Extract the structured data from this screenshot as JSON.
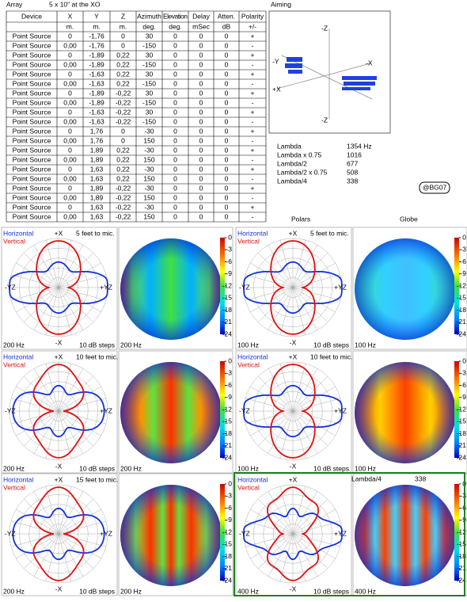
{
  "array_label": "Array",
  "array_title": "5 x 10\" at the XO",
  "table": {
    "headers": [
      "Device",
      "X",
      "Y",
      "Z",
      "Azimuth",
      "Elevation",
      "Delay",
      "Atten.",
      "Polarity"
    ],
    "units": [
      "m.",
      "m.",
      "m.",
      "deg.",
      "deg.",
      "mSec",
      "dB",
      "+/-"
    ],
    "rows": [
      [
        "Point Source",
        "0",
        "-1,76",
        "0",
        "30",
        "0",
        "0",
        "0",
        "+"
      ],
      [
        "Point Source",
        "0,00",
        "-1,76",
        "0",
        "-150",
        "0",
        "0",
        "0",
        "-"
      ],
      [
        "Point Source",
        "0",
        "-1,89",
        "0,22",
        "30",
        "0",
        "0",
        "0",
        "+"
      ],
      [
        "Point Source",
        "0,00",
        "-1,89",
        "0,22",
        "-150",
        "0",
        "0",
        "0",
        "-"
      ],
      [
        "Point Source",
        "0",
        "-1,63",
        "0,22",
        "30",
        "0",
        "0",
        "0",
        "+"
      ],
      [
        "Point Source",
        "0,00",
        "-1,63",
        "0,22",
        "-150",
        "0",
        "0",
        "0",
        "-"
      ],
      [
        "Point Source",
        "0",
        "-1,89",
        "-0,22",
        "30",
        "0",
        "0",
        "0",
        "+"
      ],
      [
        "Point Source",
        "0,00",
        "-1,89",
        "-0,22",
        "-150",
        "0",
        "0",
        "0",
        "-"
      ],
      [
        "Point Source",
        "0",
        "-1,63",
        "-0,22",
        "30",
        "0",
        "0",
        "0",
        "+"
      ],
      [
        "Point Source",
        "0,00",
        "-1,63",
        "-0,22",
        "-150",
        "0",
        "0",
        "0",
        "-"
      ],
      [
        "Point Source",
        "0",
        "1,76",
        "0",
        "-30",
        "0",
        "0",
        "0",
        "+"
      ],
      [
        "Point Source",
        "0,00",
        "1,76",
        "0",
        "150",
        "0",
        "0",
        "0",
        "-"
      ],
      [
        "Point Source",
        "0",
        "1,89",
        "0,22",
        "-30",
        "0",
        "0",
        "0",
        "+"
      ],
      [
        "Point Source",
        "0,00",
        "1,89",
        "0,22",
        "150",
        "0",
        "0",
        "0",
        "-"
      ],
      [
        "Point Source",
        "0",
        "1,63",
        "0,22",
        "-30",
        "0",
        "0",
        "0",
        "+"
      ],
      [
        "Point Source",
        "0,00",
        "1,63",
        "0,22",
        "150",
        "0",
        "0",
        "0",
        "-"
      ],
      [
        "Point Source",
        "0",
        "1,89",
        "-0,22",
        "-30",
        "0",
        "0",
        "0",
        "+"
      ],
      [
        "Point Source",
        "0,00",
        "1,89",
        "-0,22",
        "150",
        "0",
        "0",
        "0",
        "-"
      ],
      [
        "Point Source",
        "0",
        "1,63",
        "-0,22",
        "-30",
        "0",
        "0",
        "0",
        "+"
      ],
      [
        "Point Source",
        "0,00",
        "1,63",
        "-0,22",
        "150",
        "0",
        "0",
        "0",
        "-"
      ]
    ]
  },
  "aiming": {
    "title": "Aiming",
    "top": "-Z",
    "bottom": "-Z",
    "left_upper": "-Y",
    "left_lower": "+X",
    "right": "-X"
  },
  "lambda": [
    {
      "label": "Lambda",
      "value": "1354 Hz"
    },
    {
      "label": "Lambda x 0.75",
      "value": "1016"
    },
    {
      "label": "Lambda/2",
      "value": "677"
    },
    {
      "label": "Lambda/2 x 0.75",
      "value": "508"
    },
    {
      "label": "Lambda/4",
      "value": "338"
    }
  ],
  "signature": "@BG07",
  "polars_heading": "Polars",
  "globe_heading": "Globe",
  "panels": [
    {
      "horizontal": "Horizontal",
      "vertical": "Vertical",
      "top": "+X",
      "bottom": "-X",
      "left": "-YZ",
      "right": "+YZ",
      "mic_distance": "5 feet to mic.",
      "frequency": "200 Hz",
      "steps": "10 dB steps",
      "globe_frequency": "200 Hz",
      "colorbar_ticks": [
        0,
        -3,
        -6,
        -9,
        -12,
        -15,
        -18,
        -21,
        -24
      ]
    },
    {
      "horizontal": "Horizontal",
      "vertical": "Vertical",
      "top": "+X",
      "bottom": "-X",
      "left": "-YZ",
      "right": "+YZ",
      "mic_distance": "5 feet to mic.",
      "frequency": "100 Hz",
      "steps": "10 dB steps",
      "globe_frequency": "100 Hz",
      "colorbar_ticks": [
        0,
        -3,
        -6,
        -9,
        -12,
        -15,
        -18,
        -21,
        -24
      ]
    },
    {
      "horizontal": "Horizontal",
      "vertical": "Vertical",
      "top": "+X",
      "bottom": "-X",
      "left": "-YZ",
      "right": "+YZ",
      "mic_distance": "10 feet to mic.",
      "frequency": "200 Hz",
      "steps": "10 dB steps",
      "globe_frequency": "200 Hz",
      "colorbar_ticks": [
        0,
        -3,
        -6,
        -9,
        -12,
        -15,
        -18,
        -21,
        -24
      ]
    },
    {
      "horizontal": "Horizontal",
      "vertical": "Vertical",
      "top": "+X",
      "bottom": "-X",
      "left": "-YZ",
      "right": "+YZ",
      "mic_distance": "10 feet to mic.",
      "frequency": "100 Hz",
      "steps": "10 dB steps",
      "globe_frequency": "100 Hz",
      "colorbar_ticks": [
        0,
        -3,
        -6,
        -9,
        -12,
        -15,
        -18,
        -21,
        -24
      ]
    },
    {
      "horizontal": "Horizontal",
      "vertical": "Vertical",
      "top": "+X",
      "bottom": "-X",
      "left": "-YZ",
      "right": "+YZ",
      "mic_distance": "15 feet to mic.",
      "frequency": "200 Hz",
      "steps": "10 dB steps",
      "globe_frequency": "200 Hz",
      "colorbar_ticks": [
        0,
        -3,
        -6,
        -9,
        -12,
        -15,
        -18,
        -21,
        -24
      ]
    },
    {
      "horizontal": "Horizontal",
      "vertical": "Vertical",
      "top": "+X",
      "bottom": "-X",
      "left": "-YZ",
      "right": "+YZ",
      "frequency": "400 Hz",
      "steps": "10 dB steps",
      "globe_frequency": "400 Hz",
      "globe_note": "Lambda/4",
      "globe_note_value": "338",
      "colorbar_ticks": [
        0,
        -3,
        -6,
        -9,
        -12,
        -15,
        -18,
        -21,
        -24
      ]
    }
  ]
}
